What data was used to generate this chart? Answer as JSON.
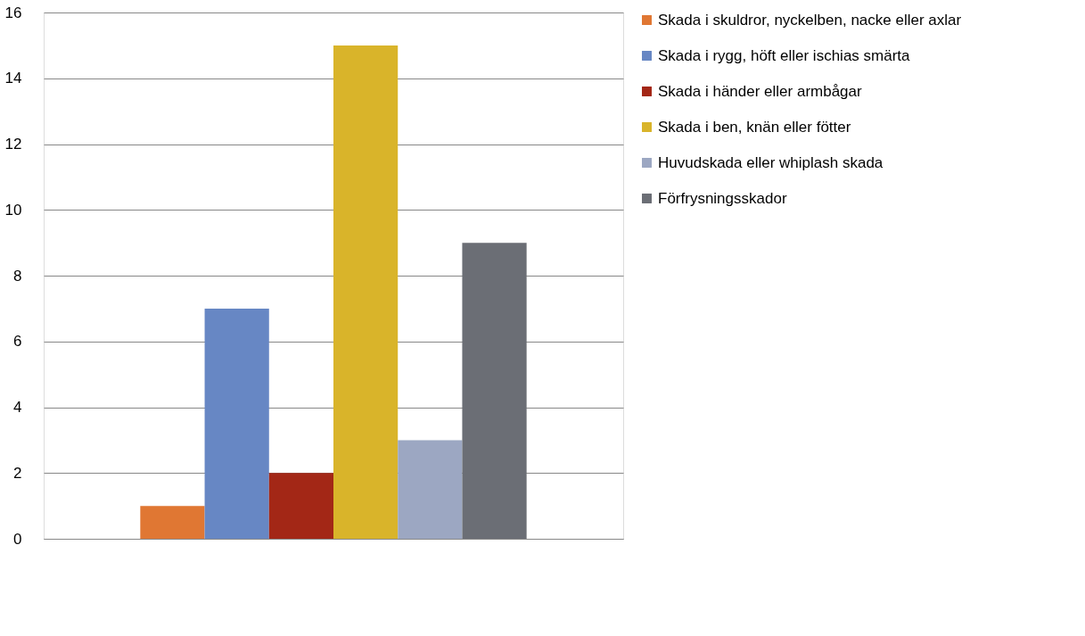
{
  "chart_data": {
    "type": "bar",
    "categories": [
      null
    ],
    "series": [
      {
        "name": "Skada i skuldror, nyckelben, nacke eller axlar",
        "color": "#e07733",
        "values": [
          1
        ]
      },
      {
        "name": "Skada i rygg, höft eller ischias smärta",
        "color": "#6787c4",
        "values": [
          7
        ]
      },
      {
        "name": "Skada i händer eller armbågar",
        "color": "#a32716",
        "values": [
          2
        ]
      },
      {
        "name": "Skada i ben, knän eller fötter",
        "color": "#d9b42a",
        "values": [
          15
        ]
      },
      {
        "name": "Huvudskada eller whiplash skada",
        "color": "#9ca7c2",
        "values": [
          3
        ]
      },
      {
        "name": "Förfrysningsskador",
        "color": "#6b6e75",
        "values": [
          9
        ]
      }
    ],
    "ylim": [
      0,
      16
    ],
    "yticks": [
      0,
      2,
      4,
      6,
      8,
      10,
      12,
      14,
      16
    ],
    "grid": "y",
    "legend": "right"
  }
}
